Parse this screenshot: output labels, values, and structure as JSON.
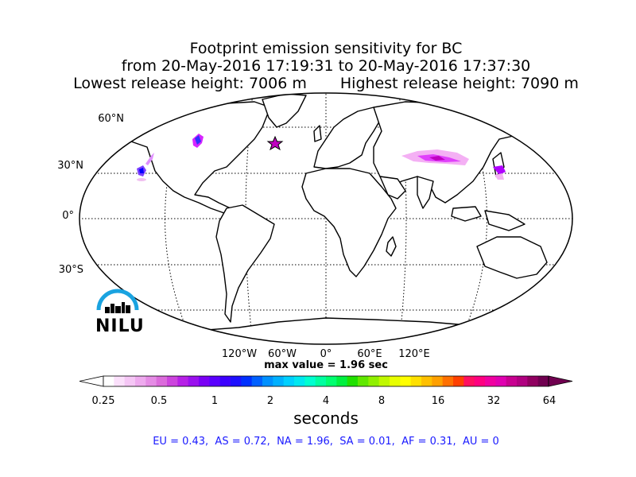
{
  "title": {
    "line1": "Footprint emission sensitivity for BC",
    "line2": "from 20-May-2016 17:19:31 to 20-May-2016 17:37:30",
    "lowest": "Lowest release height: 7006 m",
    "highest": "Highest release height: 7090 m"
  },
  "map": {
    "lat_labels": [
      "60°N",
      "30°N",
      "0°",
      "30°S"
    ],
    "lon_labels": [
      "120°W",
      "60°W",
      "0°",
      "60°E",
      "120°E"
    ],
    "release_marker": {
      "lat": 46,
      "lon": -30,
      "symbol": "star",
      "color": "#c000c0"
    },
    "sensitivity_patches": [
      {
        "region": "Great Lakes",
        "lat": 45,
        "lon": -85,
        "color": "#8a2be2"
      },
      {
        "region": "US West Coast",
        "lat": 38,
        "lon": -121,
        "color": "#0000ff"
      },
      {
        "region": "Central Asia",
        "lat": 40,
        "lon": 75,
        "color": "#e040fb"
      },
      {
        "region": "East Asia",
        "lat": 33,
        "lon": 120,
        "color": "#c000c0"
      }
    ],
    "max_value": "max value = 1.96 sec"
  },
  "colorbar": {
    "tick_labels": [
      "0.25",
      "0.5",
      "1",
      "2",
      "4",
      "8",
      "16",
      "32",
      "64"
    ],
    "unit": "seconds",
    "colors": [
      "#ffffff",
      "#fbe0fb",
      "#f5c6f5",
      "#eeaaee",
      "#e58ce5",
      "#db6bdb",
      "#cc44dd",
      "#b620e6",
      "#9a10ee",
      "#7a00f5",
      "#5a00ff",
      "#3c00ff",
      "#1e10ff",
      "#0030ff",
      "#0060ff",
      "#0090ff",
      "#00b0ff",
      "#00d0ff",
      "#00e8f0",
      "#00ffd0",
      "#00ffa0",
      "#00ff70",
      "#00f040",
      "#20e000",
      "#60e800",
      "#90f000",
      "#c0f800",
      "#e8ff00",
      "#ffff00",
      "#ffe000",
      "#ffc000",
      "#ffa000",
      "#ff7000",
      "#ff4000",
      "#ff1060",
      "#ff0080",
      "#f000a0",
      "#e000b0",
      "#c80090",
      "#b00080",
      "#900060",
      "#700050"
    ]
  },
  "region_values": "EU = 0.43,  AS = 0.72,  NA = 1.96,  SA = 0.01,  AF = 0.31,  AU = 0",
  "logo": {
    "text": "NILU"
  }
}
